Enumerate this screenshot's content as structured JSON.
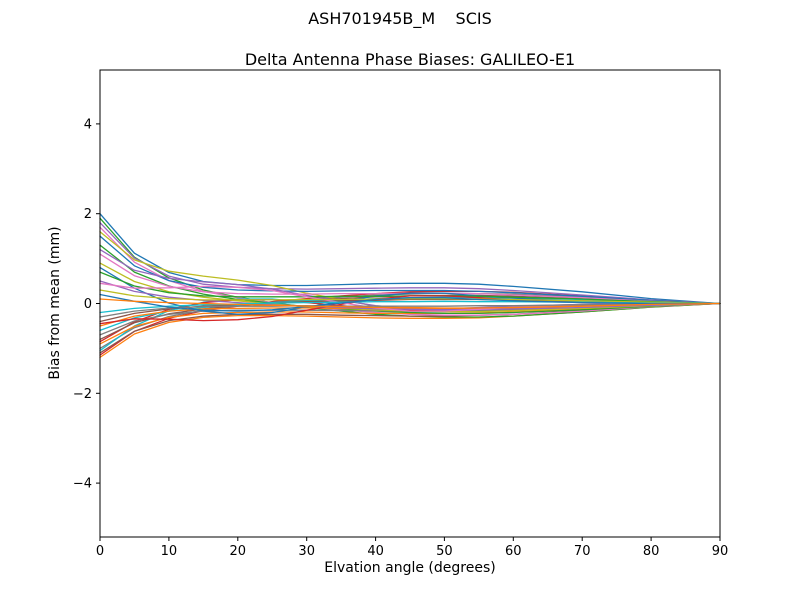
{
  "figure": {
    "suptitle": "ASH701945B_M    SCIS"
  },
  "chart_data": {
    "type": "line",
    "title": "Delta Antenna Phase Biases: GALILEO-E1",
    "suptitle": "ASH701945B_M    SCIS",
    "xlabel": "Elvation angle (degrees)",
    "ylabel": "Bias from mean (mm)",
    "xlim": [
      0,
      90
    ],
    "ylim": [
      -5.2,
      5.2
    ],
    "xticks": [
      0,
      10,
      20,
      30,
      40,
      50,
      60,
      70,
      80,
      90
    ],
    "yticks": [
      -4,
      -2,
      0,
      2,
      4
    ],
    "grid": false,
    "legend": "none",
    "x": [
      0,
      5,
      10,
      15,
      20,
      25,
      30,
      35,
      40,
      45,
      50,
      55,
      60,
      70,
      80,
      90
    ],
    "palette": [
      "#1f77b4",
      "#ff7f0e",
      "#2ca02c",
      "#d62728",
      "#9467bd",
      "#8c564b",
      "#e377c2",
      "#7f7f7f",
      "#bcbd22",
      "#17becf"
    ],
    "series": [
      {
        "name": "line-01",
        "values": [
          2.0,
          1.12,
          0.69,
          0.49,
          0.42,
          0.4,
          0.4,
          0.42,
          0.44,
          0.45,
          0.45,
          0.43,
          0.38,
          0.26,
          0.11,
          0
        ]
      },
      {
        "name": "line-02",
        "values": [
          -1.2,
          -0.68,
          -0.42,
          -0.31,
          -0.27,
          -0.27,
          -0.28,
          -0.3,
          -0.32,
          -0.33,
          -0.33,
          -0.32,
          -0.28,
          -0.19,
          -0.08,
          0
        ]
      },
      {
        "name": "line-03",
        "values": [
          1.9,
          1.03,
          0.57,
          0.3,
          0.14,
          0.02,
          -0.09,
          -0.17,
          -0.24,
          -0.28,
          -0.3,
          -0.3,
          -0.28,
          -0.19,
          -0.08,
          0
        ]
      },
      {
        "name": "line-04",
        "values": [
          -1.15,
          -0.62,
          -0.33,
          -0.16,
          -0.06,
          0.04,
          0.11,
          0.17,
          0.22,
          0.26,
          0.27,
          0.27,
          0.25,
          0.17,
          0.07,
          0
        ]
      },
      {
        "name": "line-05",
        "values": [
          1.8,
          1.01,
          0.61,
          0.43,
          0.36,
          0.33,
          0.32,
          0.33,
          0.34,
          0.35,
          0.35,
          0.33,
          0.29,
          0.19,
          0.08,
          0
        ]
      },
      {
        "name": "line-06",
        "values": [
          -1.1,
          -0.62,
          -0.38,
          -0.28,
          -0.24,
          -0.24,
          -0.24,
          -0.26,
          -0.27,
          -0.28,
          -0.28,
          -0.26,
          -0.24,
          -0.16,
          -0.07,
          0
        ]
      },
      {
        "name": "line-07",
        "values": [
          1.7,
          0.92,
          0.51,
          0.27,
          0.13,
          0.02,
          -0.08,
          -0.14,
          -0.2,
          -0.24,
          -0.26,
          -0.26,
          -0.24,
          -0.17,
          -0.07,
          0
        ]
      },
      {
        "name": "line-08",
        "values": [
          -1.0,
          -0.54,
          -0.29,
          -0.15,
          -0.05,
          0.03,
          0.09,
          0.14,
          0.19,
          0.21,
          0.23,
          0.22,
          0.21,
          0.14,
          0.06,
          0
        ]
      },
      {
        "name": "line-09",
        "values": [
          1.6,
          0.97,
          0.72,
          0.61,
          0.52,
          0.4,
          0.23,
          0.09,
          -0.06,
          -0.13,
          -0.14,
          -0.1,
          -0.07,
          -0.02,
          0.0,
          0
        ]
      },
      {
        "name": "line-10",
        "values": [
          -1.05,
          -0.5,
          -0.16,
          0.03,
          0.1,
          0.1,
          0.03,
          -0.06,
          -0.14,
          -0.18,
          -0.18,
          -0.13,
          -0.09,
          -0.03,
          -0.01,
          0
        ]
      },
      {
        "name": "line-11",
        "values": [
          1.5,
          0.84,
          0.51,
          0.36,
          0.3,
          0.28,
          0.27,
          0.28,
          0.29,
          0.29,
          0.29,
          0.27,
          0.24,
          0.16,
          0.07,
          0
        ]
      },
      {
        "name": "line-12",
        "values": [
          -0.9,
          -0.51,
          -0.31,
          -0.22,
          -0.2,
          -0.19,
          -0.19,
          -0.21,
          -0.22,
          -0.22,
          -0.22,
          -0.21,
          -0.19,
          -0.13,
          -0.05,
          0
        ]
      },
      {
        "name": "line-13",
        "values": [
          1.3,
          0.7,
          0.39,
          0.21,
          0.09,
          0.01,
          -0.07,
          -0.12,
          -0.17,
          -0.2,
          -0.22,
          -0.22,
          -0.2,
          -0.14,
          -0.06,
          0
        ]
      },
      {
        "name": "line-14",
        "values": [
          -0.85,
          -0.41,
          -0.13,
          0.02,
          0.08,
          0.08,
          0.02,
          -0.05,
          -0.11,
          -0.15,
          -0.14,
          -0.11,
          -0.07,
          -0.03,
          -0.01,
          0
        ]
      },
      {
        "name": "line-15",
        "values": [
          1.2,
          0.74,
          0.56,
          0.48,
          0.42,
          0.32,
          0.18,
          0.07,
          -0.05,
          -0.11,
          -0.12,
          -0.09,
          -0.06,
          -0.02,
          0.0,
          0
        ]
      },
      {
        "name": "line-16",
        "values": [
          -0.8,
          -0.43,
          -0.23,
          -0.12,
          -0.04,
          0.02,
          0.07,
          0.11,
          0.15,
          0.17,
          0.18,
          0.18,
          0.16,
          0.11,
          0.05,
          0
        ]
      },
      {
        "name": "line-17",
        "values": [
          1.1,
          0.62,
          0.38,
          0.26,
          0.22,
          0.21,
          0.21,
          0.22,
          0.22,
          0.23,
          0.23,
          0.22,
          0.19,
          0.13,
          0.05,
          0
        ]
      },
      {
        "name": "line-18",
        "values": [
          -0.7,
          -0.39,
          -0.24,
          -0.17,
          -0.15,
          -0.15,
          -0.15,
          -0.16,
          -0.16,
          -0.17,
          -0.17,
          -0.16,
          -0.14,
          -0.1,
          -0.04,
          0
        ]
      },
      {
        "name": "line-19",
        "values": [
          0.9,
          0.49,
          0.26,
          0.14,
          0.06,
          -0.01,
          -0.07,
          -0.11,
          -0.14,
          -0.17,
          -0.18,
          -0.18,
          -0.16,
          -0.11,
          -0.05,
          0
        ]
      },
      {
        "name": "line-20",
        "values": [
          -0.6,
          -0.32,
          -0.17,
          -0.09,
          -0.03,
          0.02,
          0.06,
          0.08,
          0.11,
          0.13,
          0.14,
          0.13,
          0.12,
          0.09,
          0.04,
          0
        ]
      },
      {
        "name": "line-21",
        "values": [
          0.8,
          0.34,
          0.01,
          -0.17,
          -0.24,
          -0.2,
          -0.08,
          0.04,
          0.17,
          0.23,
          0.23,
          0.17,
          0.12,
          0.04,
          0.01,
          0
        ]
      },
      {
        "name": "line-22",
        "values": [
          -0.5,
          -0.28,
          -0.17,
          -0.12,
          -0.11,
          -0.1,
          -0.1,
          -0.11,
          -0.11,
          -0.11,
          -0.11,
          -0.11,
          -0.1,
          -0.06,
          -0.03,
          0
        ]
      },
      {
        "name": "line-23",
        "values": [
          0.7,
          0.39,
          0.24,
          0.17,
          0.15,
          0.15,
          0.15,
          0.16,
          0.16,
          0.17,
          0.17,
          0.16,
          0.14,
          0.1,
          0.04,
          0
        ]
      },
      {
        "name": "line-24",
        "values": [
          -0.45,
          -0.34,
          -0.35,
          -0.38,
          -0.36,
          -0.29,
          -0.15,
          -0.02,
          0.1,
          0.17,
          0.17,
          0.13,
          0.08,
          0.03,
          0.0,
          0
        ]
      },
      {
        "name": "line-25",
        "values": [
          0.5,
          0.27,
          0.14,
          0.07,
          0.02,
          -0.03,
          -0.06,
          -0.09,
          -0.12,
          -0.13,
          -0.14,
          -0.13,
          -0.12,
          -0.09,
          -0.04,
          0
        ]
      },
      {
        "name": "line-26",
        "values": [
          -0.4,
          -0.22,
          -0.12,
          -0.06,
          -0.02,
          0.01,
          0.04,
          0.06,
          0.07,
          0.09,
          0.09,
          0.09,
          0.08,
          0.06,
          0.02,
          0
        ]
      },
      {
        "name": "line-27",
        "values": [
          0.45,
          0.34,
          0.35,
          0.38,
          0.36,
          0.29,
          0.15,
          0.02,
          -0.1,
          -0.17,
          -0.17,
          -0.13,
          -0.08,
          -0.03,
          0.0,
          0
        ]
      },
      {
        "name": "line-28",
        "values": [
          -0.3,
          -0.17,
          -0.1,
          -0.07,
          -0.06,
          -0.06,
          -0.05,
          -0.06,
          -0.06,
          -0.06,
          -0.06,
          -0.05,
          -0.05,
          -0.03,
          -0.01,
          0
        ]
      },
      {
        "name": "line-29",
        "values": [
          0.3,
          0.17,
          0.11,
          0.08,
          0.08,
          0.08,
          0.09,
          0.09,
          0.1,
          0.11,
          0.11,
          0.1,
          0.09,
          0.06,
          0.03,
          0
        ]
      },
      {
        "name": "line-30",
        "values": [
          -0.2,
          -0.11,
          -0.06,
          -0.03,
          -0.01,
          0.01,
          0.02,
          0.03,
          0.04,
          0.04,
          0.05,
          0.04,
          0.04,
          0.03,
          0.01,
          0
        ]
      },
      {
        "name": "line-31",
        "values": [
          0.2,
          0.05,
          -0.08,
          -0.15,
          -0.17,
          -0.14,
          -0.07,
          0.01,
          0.09,
          0.13,
          0.13,
          0.09,
          0.06,
          0.02,
          0.0,
          0
        ]
      },
      {
        "name": "line-32",
        "values": [
          0.1,
          0.05,
          0.02,
          0.0,
          -0.02,
          -0.04,
          -0.06,
          -0.07,
          -0.09,
          -0.09,
          -0.1,
          -0.1,
          -0.09,
          -0.06,
          -0.02,
          0
        ]
      }
    ]
  }
}
